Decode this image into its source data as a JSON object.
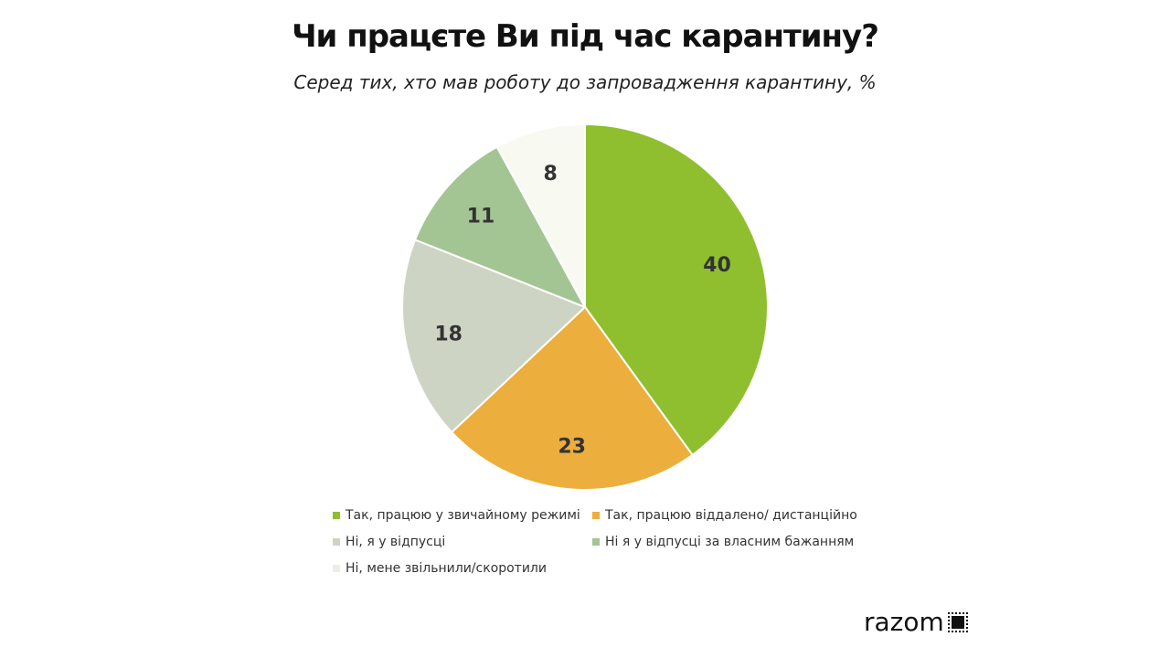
{
  "chart_data": {
    "type": "pie",
    "title": "Чи працєте Ви під час карантину?",
    "subtitle": "Серед тих, хто мав роботу до запровадження карантину, %",
    "start_angle": "top",
    "direction": "clockwise",
    "legend_placement": "bottom",
    "slices": [
      {
        "label": "Так, працюю у звичайному режимі",
        "value": 40,
        "color": "#8fbf2f"
      },
      {
        "label": "Так, працюю віддалено/ дистанційно",
        "value": 23,
        "color": "#ecae3c"
      },
      {
        "label": "Ні, я у відпусці",
        "value": 18,
        "color": "#ced4c4"
      },
      {
        "label": "Ні я у відпусці за власним бажанням",
        "value": 11,
        "color": "#a3c594"
      },
      {
        "label": "Ні, мене звільнили/скоротили",
        "value": 8,
        "color": "#f8faf2"
      }
    ]
  },
  "brand": {
    "logo_text": "razom"
  }
}
